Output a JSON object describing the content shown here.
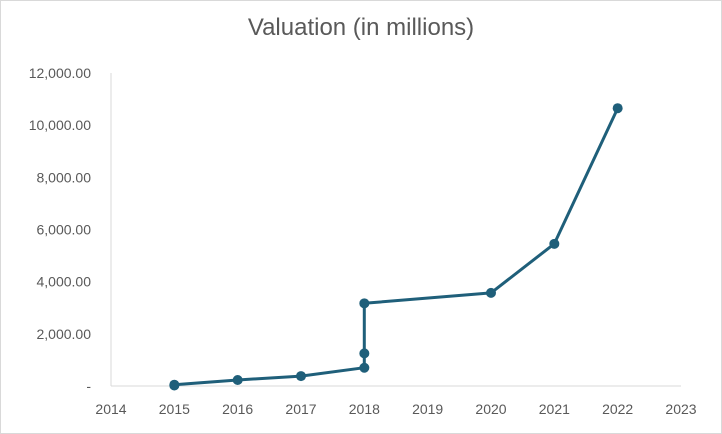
{
  "chart_data": {
    "type": "scatter",
    "mode": "lines+markers",
    "title": "Valuation (in millions)",
    "xlabel": "",
    "ylabel": "",
    "xlim": [
      2014,
      2023
    ],
    "ylim": [
      0,
      12000
    ],
    "x_ticks": [
      "2014",
      "2015",
      "2016",
      "2017",
      "2018",
      "2019",
      "2020",
      "2021",
      "2022",
      "2023"
    ],
    "y_ticks": [
      "-",
      "2,000.00",
      "4,000.00",
      "6,000.00",
      "8,000.00",
      "10,000.00",
      "12,000.00"
    ],
    "grid": false,
    "legend": "none",
    "series": [
      {
        "color": "#1f5f7a",
        "x": [
          2015,
          2015,
          2016,
          2017,
          2018,
          2018,
          2018,
          2020,
          2021,
          2022
        ],
        "y": [
          20,
          50,
          230,
          380,
          700,
          1250,
          3170,
          3570,
          5450,
          10650
        ]
      }
    ]
  }
}
